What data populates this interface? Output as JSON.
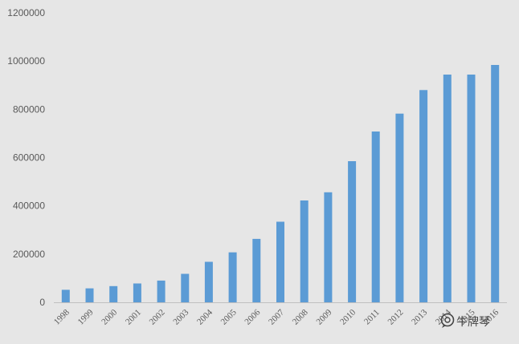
{
  "chart_data": {
    "type": "bar",
    "categories": [
      "1998",
      "1999",
      "2000",
      "2001",
      "2002",
      "2003",
      "2004",
      "2005",
      "2006",
      "2007",
      "2008",
      "2009",
      "2010",
      "2011",
      "2012",
      "2013",
      "2014",
      "2015",
      "2016"
    ],
    "values": [
      52000,
      58000,
      67000,
      78000,
      90000,
      118000,
      168000,
      207000,
      263000,
      334000,
      422000,
      456000,
      585000,
      708000,
      782000,
      880000,
      944000,
      944000,
      984000
    ],
    "title": "",
    "xlabel": "",
    "ylabel": "",
    "ylim": [
      0,
      1200000
    ],
    "yticks": [
      "0",
      "200000",
      "400000",
      "600000",
      "800000",
      "1000000",
      "1200000"
    ],
    "grid": false,
    "legend": "none",
    "bar_color": "#5b9bd5"
  },
  "watermark": {
    "icon": "wechat-official-account-icon",
    "text": "牛牌琴"
  }
}
